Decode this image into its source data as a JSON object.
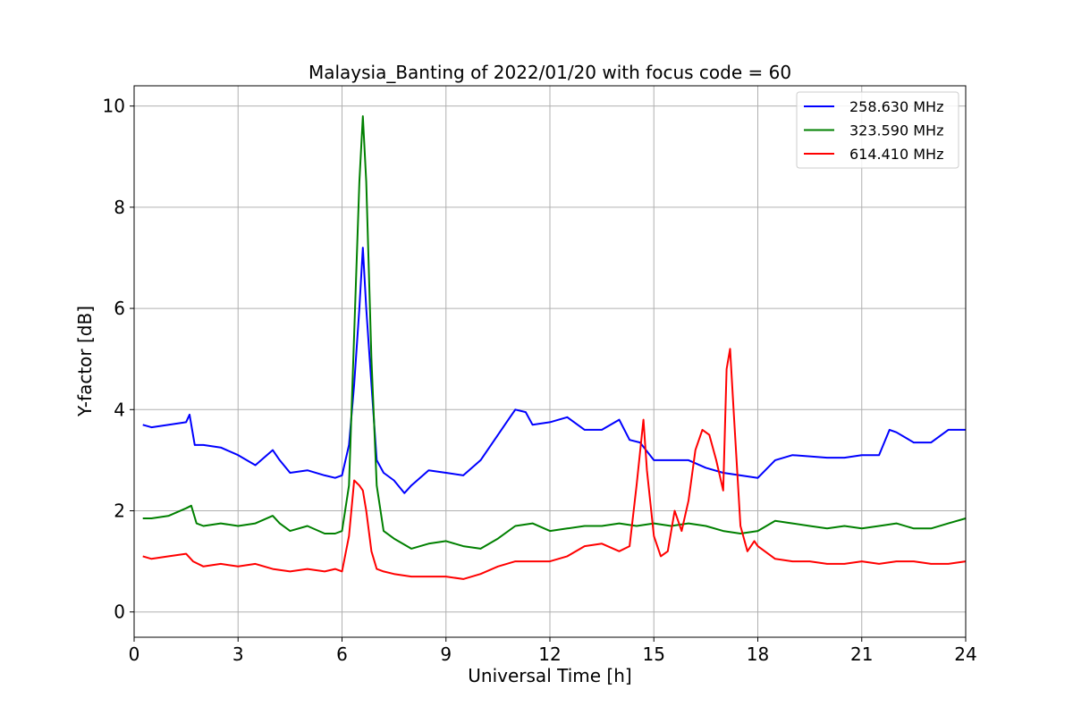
{
  "chart_data": {
    "type": "line",
    "title": "Malaysia_Banting of 2022/01/20 with focus code = 60",
    "xlabel": "Universal Time [h]",
    "ylabel": "Y-factor [dB]",
    "xlim": [
      0,
      24
    ],
    "ylim": [
      -0.5,
      10.4
    ],
    "xticks": [
      "0",
      "3",
      "6",
      "9",
      "12",
      "15",
      "18",
      "21",
      "24"
    ],
    "yticks": [
      "0",
      "2",
      "4",
      "6",
      "8",
      "10"
    ],
    "grid": true,
    "legend_position": "top-right",
    "series": [
      {
        "name": "258.630 MHz",
        "color": "#0000ff",
        "x": [
          0.25,
          0.5,
          1.0,
          1.5,
          1.6,
          1.75,
          2.0,
          2.5,
          3.0,
          3.5,
          4.0,
          4.2,
          4.5,
          5.0,
          5.5,
          5.8,
          6.0,
          6.2,
          6.35,
          6.5,
          6.6,
          6.7,
          6.85,
          7.0,
          7.2,
          7.5,
          7.8,
          8.0,
          8.5,
          9.0,
          9.5,
          10.0,
          10.5,
          10.8,
          11.0,
          11.3,
          11.5,
          12.0,
          12.5,
          13.0,
          13.5,
          14.0,
          14.3,
          14.6,
          15.0,
          15.5,
          16.0,
          16.5,
          17.0,
          17.5,
          18.0,
          18.5,
          19.0,
          20.0,
          20.5,
          21.0,
          21.5,
          21.8,
          22.0,
          22.5,
          23.0,
          23.5,
          24.0
        ],
        "y": [
          3.7,
          3.65,
          3.7,
          3.75,
          3.9,
          3.3,
          3.3,
          3.25,
          3.1,
          2.9,
          3.2,
          3.0,
          2.75,
          2.8,
          2.7,
          2.65,
          2.7,
          3.3,
          4.5,
          6.0,
          7.2,
          6.0,
          4.5,
          3.0,
          2.75,
          2.6,
          2.35,
          2.5,
          2.8,
          2.75,
          2.7,
          3.0,
          3.5,
          3.8,
          4.0,
          3.95,
          3.7,
          3.75,
          3.85,
          3.6,
          3.6,
          3.8,
          3.4,
          3.35,
          3.0,
          3.0,
          3.0,
          2.85,
          2.75,
          2.7,
          2.65,
          3.0,
          3.1,
          3.05,
          3.05,
          3.1,
          3.1,
          3.6,
          3.55,
          3.35,
          3.35,
          3.6,
          3.6
        ]
      },
      {
        "name": "323.590 MHz",
        "color": "#008000",
        "x": [
          0.25,
          0.5,
          1.0,
          1.5,
          1.65,
          1.8,
          2.0,
          2.5,
          3.0,
          3.5,
          4.0,
          4.2,
          4.5,
          5.0,
          5.5,
          5.8,
          6.0,
          6.2,
          6.35,
          6.5,
          6.6,
          6.7,
          6.85,
          7.0,
          7.2,
          7.5,
          8.0,
          8.5,
          9.0,
          9.5,
          10.0,
          10.5,
          11.0,
          11.5,
          12.0,
          12.5,
          13.0,
          13.5,
          14.0,
          14.5,
          15.0,
          15.5,
          16.0,
          16.5,
          17.0,
          17.5,
          18.0,
          18.5,
          19.0,
          19.5,
          20.0,
          20.5,
          21.0,
          21.5,
          22.0,
          22.5,
          23.0,
          23.5,
          24.0
        ],
        "y": [
          1.85,
          1.85,
          1.9,
          2.05,
          2.1,
          1.75,
          1.7,
          1.75,
          1.7,
          1.75,
          1.9,
          1.75,
          1.6,
          1.7,
          1.55,
          1.55,
          1.6,
          2.5,
          5.5,
          8.5,
          9.8,
          8.5,
          5.0,
          2.5,
          1.6,
          1.45,
          1.25,
          1.35,
          1.4,
          1.3,
          1.25,
          1.45,
          1.7,
          1.75,
          1.6,
          1.65,
          1.7,
          1.7,
          1.75,
          1.7,
          1.75,
          1.7,
          1.75,
          1.7,
          1.6,
          1.55,
          1.6,
          1.8,
          1.75,
          1.7,
          1.65,
          1.7,
          1.65,
          1.7,
          1.75,
          1.65,
          1.65,
          1.75,
          1.85
        ]
      },
      {
        "name": "614.410 MHz",
        "color": "#ff0000",
        "x": [
          0.25,
          0.5,
          1.0,
          1.5,
          1.7,
          2.0,
          2.5,
          3.0,
          3.5,
          4.0,
          4.5,
          5.0,
          5.5,
          5.8,
          6.0,
          6.2,
          6.35,
          6.5,
          6.6,
          6.7,
          6.85,
          7.0,
          7.2,
          7.5,
          8.0,
          8.5,
          9.0,
          9.5,
          10.0,
          10.5,
          11.0,
          11.5,
          12.0,
          12.5,
          13.0,
          13.5,
          14.0,
          14.3,
          14.5,
          14.7,
          14.8,
          15.0,
          15.2,
          15.4,
          15.6,
          15.8,
          16.0,
          16.2,
          16.4,
          16.6,
          16.8,
          17.0,
          17.1,
          17.2,
          17.3,
          17.5,
          17.7,
          17.9,
          18.0,
          18.5,
          19.0,
          19.5,
          20.0,
          20.5,
          21.0,
          21.5,
          22.0,
          22.5,
          23.0,
          23.5,
          24.0
        ],
        "y": [
          1.1,
          1.05,
          1.1,
          1.15,
          1.0,
          0.9,
          0.95,
          0.9,
          0.95,
          0.85,
          0.8,
          0.85,
          0.8,
          0.85,
          0.8,
          1.5,
          2.6,
          2.5,
          2.4,
          2.0,
          1.2,
          0.85,
          0.8,
          0.75,
          0.7,
          0.7,
          0.7,
          0.65,
          0.75,
          0.9,
          1.0,
          1.0,
          1.0,
          1.1,
          1.3,
          1.35,
          1.2,
          1.3,
          2.5,
          3.8,
          2.8,
          1.5,
          1.1,
          1.2,
          2.0,
          1.6,
          2.2,
          3.2,
          3.6,
          3.5,
          3.0,
          2.4,
          4.8,
          5.2,
          4.0,
          1.7,
          1.2,
          1.4,
          1.3,
          1.05,
          1.0,
          1.0,
          0.95,
          0.95,
          1.0,
          0.95,
          1.0,
          1.0,
          0.95,
          0.95,
          1.0
        ]
      }
    ]
  }
}
